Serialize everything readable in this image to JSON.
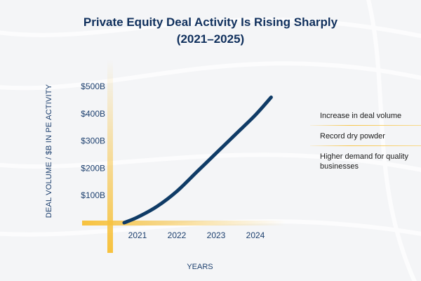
{
  "title_lines": [
    "Private Equity Deal Activity Is Rising Sharply",
    "(2021–2025)"
  ],
  "colors": {
    "line": "#0f3b66",
    "accent": "#f7c23e",
    "text": "#1c3f6e"
  },
  "chart_data": {
    "type": "line",
    "title": "Private Equity Deal Activity Is Rising Sharply (2021–2025)",
    "xlabel": "YEARS",
    "ylabel": "DEAL VOLUME / $B IN PE ACTIVITY",
    "x_ticks": [
      "2021",
      "2022",
      "2023",
      "2024"
    ],
    "y_ticks": [
      {
        "value": 100,
        "label": "$100B"
      },
      {
        "value": 200,
        "label": "$200B"
      },
      {
        "value": 300,
        "label": "$300B"
      },
      {
        "value": 400,
        "label": "$400B"
      },
      {
        "value": 500,
        "label": "$500B"
      }
    ],
    "xlim": [
      2020.6,
      2024.8
    ],
    "ylim": [
      0,
      500
    ],
    "series": [
      {
        "name": "Deal volume",
        "x": [
          2020.66,
          2021.0,
          2021.5,
          2022.0,
          2022.5,
          2023.0,
          2023.5,
          2024.0,
          2024.4
        ],
        "values": [
          0,
          20,
          60,
          115,
          185,
          255,
          325,
          395,
          460
        ]
      }
    ]
  },
  "legend": [
    "Increase in deal volume",
    "Record dry powder",
    "Higher demand for quality businesses"
  ]
}
